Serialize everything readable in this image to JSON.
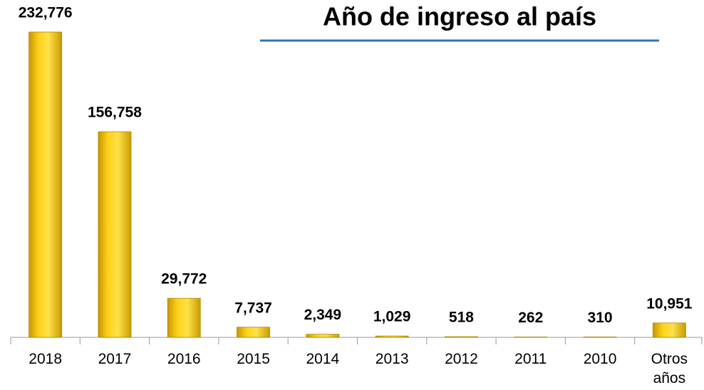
{
  "chart_data": {
    "type": "bar",
    "title": "Año de ingreso al país",
    "categories": [
      "2018",
      "2017",
      "2016",
      "2015",
      "2014",
      "2013",
      "2012",
      "2011",
      "2010",
      "Otros años"
    ],
    "values": [
      232776,
      156758,
      29772,
      7737,
      2349,
      1029,
      518,
      262,
      310,
      10951
    ],
    "value_labels": [
      "232,776",
      "156,758",
      "29,772",
      "7,737",
      "2,349",
      "1,029",
      "518",
      "262",
      "310",
      "10,951"
    ],
    "color": "#f5c400"
  }
}
